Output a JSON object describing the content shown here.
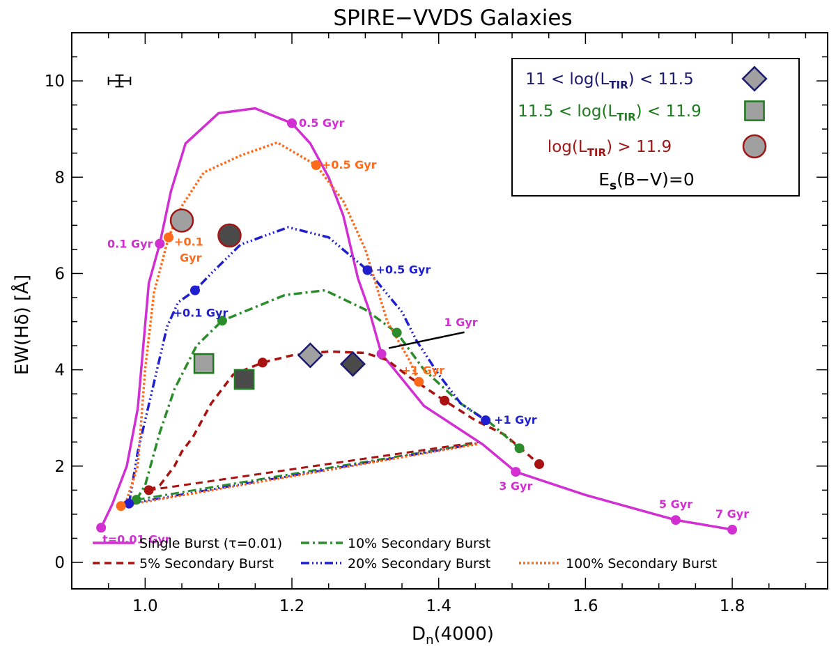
{
  "chart_data": {
    "type": "line",
    "title": "SPIRE−VVDS Galaxies",
    "xlabel": {
      "main": "D",
      "sub": "n",
      "rest": "(4000)"
    },
    "ylabel": "EW(Hδ) [Å]",
    "xlim": [
      0.9,
      1.93
    ],
    "ylim": [
      -0.55,
      11.0
    ],
    "xticks": [
      1.0,
      1.2,
      1.4,
      1.6,
      1.8
    ],
    "xtick_labels": [
      "1.0",
      "1.2",
      "1.4",
      "1.6",
      "1.8"
    ],
    "yticks": [
      0,
      2,
      4,
      6,
      8,
      10
    ],
    "ytick_labels": [
      "0",
      "2",
      "4",
      "6",
      "8",
      "10"
    ],
    "series": [
      {
        "name": "Single Burst (τ=0.01)",
        "color": "#d22fd2",
        "dash": "solid",
        "points": [
          [
            0.94,
            0.72
          ],
          [
            0.955,
            1.2
          ],
          [
            0.975,
            2.0
          ],
          [
            0.99,
            3.2
          ],
          [
            1.005,
            5.8
          ],
          [
            1.02,
            6.62
          ],
          [
            1.035,
            7.7
          ],
          [
            1.055,
            8.7
          ],
          [
            1.1,
            9.33
          ],
          [
            1.15,
            9.43
          ],
          [
            1.2,
            9.12
          ],
          [
            1.225,
            8.7
          ],
          [
            1.25,
            8.0
          ],
          [
            1.27,
            7.2
          ],
          [
            1.29,
            5.9
          ],
          [
            1.305,
            5.25
          ],
          [
            1.322,
            4.33
          ],
          [
            1.34,
            4.0
          ],
          [
            1.38,
            3.25
          ],
          [
            1.42,
            2.85
          ],
          [
            1.46,
            2.45
          ],
          [
            1.505,
            1.88
          ],
          [
            1.6,
            1.4
          ],
          [
            1.723,
            0.88
          ],
          [
            1.8,
            0.68
          ]
        ],
        "markers": [
          [
            0.94,
            0.72
          ],
          [
            1.02,
            6.62
          ],
          [
            1.2,
            9.12
          ],
          [
            1.322,
            4.33
          ],
          [
            1.505,
            1.88
          ],
          [
            1.723,
            0.88
          ],
          [
            1.8,
            0.68
          ]
        ]
      },
      {
        "name": "5% Secondary Burst",
        "color": "#aa1111",
        "dash": "10,7",
        "points": [
          [
            1.005,
            1.5
          ],
          [
            1.02,
            1.6
          ],
          [
            1.04,
            2.0
          ],
          [
            1.05,
            2.3
          ],
          [
            1.065,
            2.6
          ],
          [
            1.09,
            3.3
          ],
          [
            1.12,
            3.9
          ],
          [
            1.16,
            4.15
          ],
          [
            1.2,
            4.3
          ],
          [
            1.25,
            4.38
          ],
          [
            1.3,
            4.35
          ],
          [
            1.33,
            4.2
          ],
          [
            1.36,
            3.85
          ],
          [
            1.408,
            3.36
          ],
          [
            1.45,
            2.95
          ],
          [
            1.49,
            2.65
          ],
          [
            1.537,
            2.04
          ]
        ],
        "markers": [
          [
            1.005,
            1.5
          ],
          [
            1.16,
            4.15
          ],
          [
            1.408,
            3.36
          ],
          [
            1.537,
            2.04
          ]
        ]
      },
      {
        "name": "10% Secondary Burst",
        "color": "#2b8c2b",
        "dash": "12,5,3,5",
        "points": [
          [
            0.988,
            1.3
          ],
          [
            1.0,
            1.6
          ],
          [
            1.02,
            2.7
          ],
          [
            1.04,
            3.6
          ],
          [
            1.07,
            4.5
          ],
          [
            1.105,
            5.02
          ],
          [
            1.19,
            5.55
          ],
          [
            1.245,
            5.65
          ],
          [
            1.3,
            5.25
          ],
          [
            1.343,
            4.77
          ],
          [
            1.38,
            4.0
          ],
          [
            1.43,
            3.3
          ],
          [
            1.47,
            2.9
          ],
          [
            1.51,
            2.37
          ]
        ],
        "markers": [
          [
            0.988,
            1.3
          ],
          [
            1.105,
            5.02
          ],
          [
            1.343,
            4.77
          ],
          [
            1.51,
            2.37
          ]
        ]
      },
      {
        "name": "20% Secondary Burst",
        "color": "#1f1fcf",
        "dash": "12,4,2,4,2,4,2,4",
        "points": [
          [
            0.978,
            1.22
          ],
          [
            0.99,
            2.3
          ],
          [
            1.01,
            3.6
          ],
          [
            1.03,
            4.9
          ],
          [
            1.045,
            5.4
          ],
          [
            1.068,
            5.65
          ],
          [
            1.09,
            6.0
          ],
          [
            1.13,
            6.6
          ],
          [
            1.195,
            6.96
          ],
          [
            1.25,
            6.75
          ],
          [
            1.303,
            6.07
          ],
          [
            1.35,
            5.2
          ],
          [
            1.37,
            4.6
          ],
          [
            1.4,
            3.9
          ],
          [
            1.43,
            3.3
          ],
          [
            1.464,
            2.95
          ]
        ],
        "markers": [
          [
            0.978,
            1.22
          ],
          [
            1.068,
            5.65
          ],
          [
            1.303,
            6.07
          ],
          [
            1.464,
            2.95
          ]
        ]
      },
      {
        "name": "100% Secondary Burst",
        "color": "#ff6a1a",
        "dash": "3,3",
        "points": [
          [
            0.967,
            1.17
          ],
          [
            0.975,
            1.3
          ],
          [
            0.99,
            2.0
          ],
          [
            1.0,
            4.0
          ],
          [
            1.012,
            5.6
          ],
          [
            1.032,
            6.75
          ],
          [
            1.05,
            7.4
          ],
          [
            1.08,
            8.1
          ],
          [
            1.13,
            8.45
          ],
          [
            1.18,
            8.72
          ],
          [
            1.233,
            8.25
          ],
          [
            1.27,
            7.5
          ],
          [
            1.3,
            6.5
          ],
          [
            1.33,
            5.0
          ],
          [
            1.36,
            4.2
          ],
          [
            1.373,
            3.75
          ]
        ],
        "markers": [
          [
            0.967,
            1.17
          ],
          [
            1.032,
            6.75
          ],
          [
            1.233,
            8.25
          ],
          [
            1.373,
            3.75
          ]
        ]
      }
    ],
    "return_lines": [
      {
        "color": "#aa1111",
        "dash": "10,7",
        "from": [
          1.005,
          1.5
        ],
        "to": [
          1.455,
          2.5
        ]
      },
      {
        "color": "#2b8c2b",
        "dash": "12,5,3,5",
        "from": [
          0.988,
          1.3
        ],
        "to": [
          1.455,
          2.48
        ]
      },
      {
        "color": "#1f1fcf",
        "dash": "12,4,2,4,2,4,2,4",
        "from": [
          0.978,
          1.22
        ],
        "to": [
          1.455,
          2.47
        ]
      },
      {
        "color": "#ff6a1a",
        "dash": "3,3",
        "from": [
          0.967,
          1.17
        ],
        "to": [
          1.455,
          2.46
        ]
      }
    ],
    "data_points": [
      {
        "shape": "diamond",
        "group": "11 < log(L_TIR) < 11.5",
        "x": 1.225,
        "y": 4.3,
        "fill": "#a0a0a0",
        "edge": "#1a1a6e"
      },
      {
        "shape": "diamond",
        "group": "11 < log(L_TIR) < 11.5",
        "x": 1.283,
        "y": 4.12,
        "fill": "#4a4a4a",
        "edge": "#1a1a6e"
      },
      {
        "shape": "square",
        "group": "11.5 < log(L_TIR) < 11.9",
        "x": 1.08,
        "y": 4.13,
        "fill": "#a0a0a0",
        "edge": "#1f7a1f"
      },
      {
        "shape": "square",
        "group": "11.5 < log(L_TIR) < 11.9",
        "x": 1.135,
        "y": 3.8,
        "fill": "#4a4a4a",
        "edge": "#1f7a1f"
      },
      {
        "shape": "circle",
        "group": "log(L_TIR) > 11.9",
        "x": 1.05,
        "y": 7.1,
        "fill": "#a0a0a0",
        "edge": "#a01515"
      },
      {
        "shape": "circle",
        "group": "log(L_TIR) > 11.9",
        "x": 1.115,
        "y": 6.79,
        "fill": "#4a4a4a",
        "edge": "#a01515"
      }
    ],
    "error_bar": {
      "x": 0.965,
      "y": 10.0,
      "dx": 0.015,
      "dy": 0.12
    },
    "annotations": [
      {
        "text": "0.5 Gyr",
        "x": 1.2,
        "y": 9.12,
        "color": "#d22fd2",
        "anchor": "start",
        "dx": 10,
        "dy": 5
      },
      {
        "text": "0.1 Gyr",
        "x": 1.02,
        "y": 6.62,
        "color": "#d22fd2",
        "anchor": "end",
        "dx": -10,
        "dy": 6
      },
      {
        "text": "1 Gyr",
        "x": 1.322,
        "y": 4.33,
        "color": "#d22fd2",
        "anchor": "start",
        "dx": 90,
        "dy": -40
      },
      {
        "text": "3 Gyr",
        "x": 1.505,
        "y": 1.88,
        "color": "#d22fd2",
        "anchor": "middle",
        "dx": 0,
        "dy": 26
      },
      {
        "text": "5 Gyr",
        "x": 1.723,
        "y": 0.88,
        "color": "#d22fd2",
        "anchor": "middle",
        "dx": 0,
        "dy": -17
      },
      {
        "text": "7 Gyr",
        "x": 1.8,
        "y": 0.68,
        "color": "#d22fd2",
        "anchor": "middle",
        "dx": 0,
        "dy": -17
      },
      {
        "text": "t=0.01 Gyr",
        "x": 0.94,
        "y": 0.72,
        "color": "#d22fd2",
        "anchor": "start",
        "dx": 2,
        "dy": 22
      },
      {
        "text": "+0.5 Gyr",
        "x": 1.233,
        "y": 8.25,
        "color": "#ff6a1a",
        "anchor": "start",
        "dx": 8,
        "dy": 5
      },
      {
        "text": "+0.1",
        "x": 1.032,
        "y": 6.75,
        "color": "#ff6a1a",
        "anchor": "start",
        "dx": 8,
        "dy": 12
      },
      {
        "text": "Gyr",
        "x": 1.032,
        "y": 6.75,
        "color": "#ff6a1a",
        "anchor": "start",
        "dx": 16,
        "dy": 35
      },
      {
        "text": "+1 Gyr",
        "x": 1.373,
        "y": 3.75,
        "color": "#ff6a1a",
        "anchor": "middle",
        "dx": 6,
        "dy": -11
      },
      {
        "text": "+0.5 Gyr",
        "x": 1.303,
        "y": 6.07,
        "color": "#1f1fcf",
        "anchor": "start",
        "dx": 12,
        "dy": 5
      },
      {
        "text": "+0.1 Gyr",
        "x": 1.068,
        "y": 5.65,
        "color": "#1f1fcf",
        "anchor": "middle",
        "dx": 8,
        "dy": 38
      },
      {
        "text": "+1 Gyr",
        "x": 1.464,
        "y": 2.95,
        "color": "#1f1fcf",
        "anchor": "start",
        "dx": 12,
        "dy": 5
      }
    ],
    "pointer_line": {
      "color": "#000000",
      "from": [
        1.332,
        4.45
      ],
      "to": [
        1.435,
        4.78
      ]
    },
    "inset_legend": [
      {
        "text_before": "11 < log(L",
        "sub": "TIR",
        "text_after": ") < 11.5",
        "color": "#1a1a6e",
        "shape": "diamond",
        "fill": "#a0a0a0",
        "edge": "#1a1a6e"
      },
      {
        "text_before": "11.5 < log(L",
        "sub": "TIR",
        "text_after": ") < 11.9",
        "color": "#1f7a1f",
        "shape": "square",
        "fill": "#a0a0a0",
        "edge": "#1f7a1f"
      },
      {
        "text_before": "log(L",
        "sub": "TIR",
        "text_after": ") > 11.9",
        "color": "#a01515",
        "shape": "circle",
        "fill": "#a0a0a0",
        "edge": "#a01515"
      }
    ],
    "ebv_label": {
      "main": "E",
      "sub": "s",
      "rest": "(B−V)=0"
    },
    "bottom_legend": [
      {
        "label": "Single Burst (τ=0.01)",
        "color": "#d22fd2",
        "dash": "solid"
      },
      {
        "label": "10% Secondary Burst",
        "color": "#2b8c2b",
        "dash": "12,5,3,5"
      },
      {
        "label": "5% Secondary Burst",
        "color": "#aa1111",
        "dash": "10,7"
      },
      {
        "label": "20% Secondary Burst",
        "color": "#1f1fcf",
        "dash": "12,4,2,4,2,4,2,4"
      },
      {
        "label": "100% Secondary Burst",
        "color": "#ff6a1a",
        "dash": "3,3"
      }
    ]
  }
}
